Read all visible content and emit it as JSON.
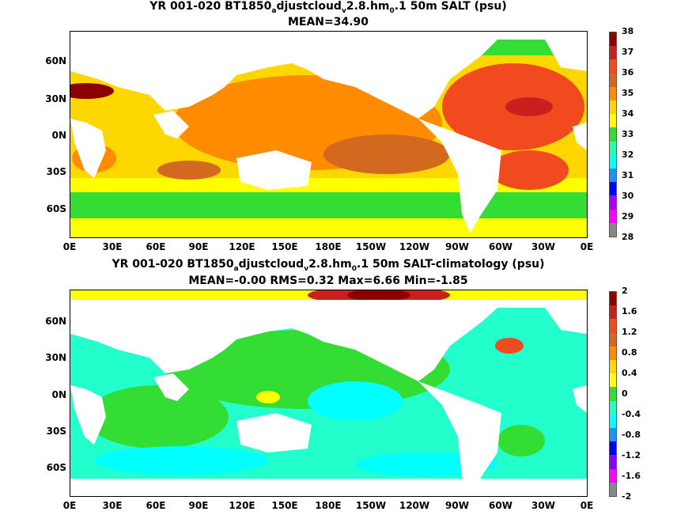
{
  "panel1": {
    "title_lines": [
      "YR 001-020 BT1850",
      "a",
      "djustcloud",
      "v",
      "2.8.hm",
      "0",
      ".1 50m SALT (psu)"
    ],
    "subtitle": "MEAN=34.90",
    "colorbar_labels": [
      "38",
      "37",
      "36",
      "35",
      "34",
      "33",
      "32",
      "31",
      "30",
      "29",
      "28"
    ],
    "colorbar_colors": [
      "#8b0000",
      "#c8201e",
      "#f04a1e",
      "#d2691e",
      "#ff8c00",
      "#ffd700",
      "#ffff00",
      "#33dd33",
      "#22ffaa",
      "#00ffff",
      "#1e90ff",
      "#0000ff",
      "#aa00ff",
      "#ff00ff",
      "#888888"
    ]
  },
  "panel2": {
    "title_lines": [
      "YR 001-020 BT1850",
      "a",
      "djustcloud",
      "v",
      "2.8.hm",
      "0",
      ".1 50m SALT-climatology (psu)"
    ],
    "subtitle": "MEAN=-0.00   RMS=0.32   Max=6.66   Min=-1.85",
    "colorbar_labels": [
      "2",
      "1.6",
      "1.2",
      "0.8",
      "0.4",
      "0",
      "-0.4",
      "-0.8",
      "-1.2",
      "-1.6",
      "-2"
    ],
    "colorbar_colors": [
      "#8b0000",
      "#c8201e",
      "#f04a1e",
      "#d2691e",
      "#ff8c00",
      "#ffd700",
      "#ffff00",
      "#33dd33",
      "#22ffcc",
      "#00ffff",
      "#1e90ff",
      "#0000ff",
      "#8800ff",
      "#ff00ff",
      "#888888"
    ]
  },
  "axes": {
    "ylabels": [
      "60N",
      "30N",
      "0N",
      "30S",
      "60S"
    ],
    "xlabels": [
      "0E",
      "30E",
      "60E",
      "90E",
      "120E",
      "150E",
      "180E",
      "150W",
      "120W",
      "90W",
      "60W",
      "30W",
      "0E"
    ]
  }
}
